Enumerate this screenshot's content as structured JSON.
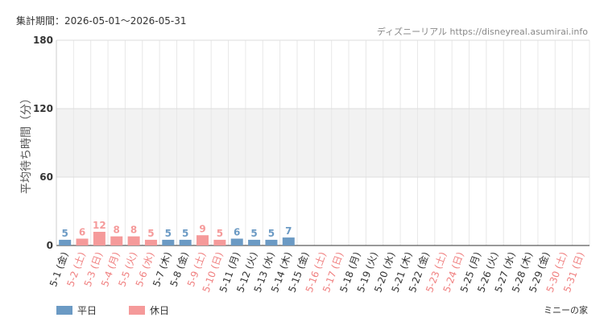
{
  "chart_data": {
    "type": "bar",
    "title": "集計期間：2026-05-01～2026-05-31",
    "source": "ディズニーリアル https://disneyreal.asumirai.info",
    "y_label": "平均待ち時間（分）",
    "footer": "ミニーの家",
    "categories": [
      "5-1 (金)",
      "5-2 (土)",
      "5-3 (日)",
      "5-4 (月)",
      "5-5 (火)",
      "5-6 (水)",
      "5-7 (木)",
      "5-8 (金)",
      "5-9 (土)",
      "5-10 (日)",
      "5-11 (月)",
      "5-12 (火)",
      "5-13 (水)",
      "5-14 (木)",
      "5-15 (金)",
      "5-16 (土)",
      "5-17 (日)",
      "5-18 (月)",
      "5-19 (火)",
      "5-20 (水)",
      "5-21 (木)",
      "5-22 (金)",
      "5-23 (土)",
      "5-24 (日)",
      "5-25 (月)",
      "5-26 (火)",
      "5-27 (水)",
      "5-28 (木)",
      "5-29 (金)",
      "5-30 (土)",
      "5-31 (日)"
    ],
    "category_colors": [
      "#333333",
      "#f08080",
      "#f08080",
      "#f08080",
      "#f08080",
      "#f08080",
      "#333333",
      "#333333",
      "#f08080",
      "#f08080",
      "#333333",
      "#333333",
      "#333333",
      "#333333",
      "#333333",
      "#f08080",
      "#f08080",
      "#333333",
      "#333333",
      "#333333",
      "#333333",
      "#333333",
      "#f08080",
      "#f08080",
      "#333333",
      "#333333",
      "#333333",
      "#333333",
      "#333333",
      "#f08080",
      "#f08080"
    ],
    "series": [
      {
        "name": "平日",
        "color": "#6b9ac4",
        "values": [
          5,
          null,
          null,
          null,
          null,
          null,
          5,
          5,
          null,
          null,
          6,
          5,
          5,
          7,
          null,
          null,
          null,
          null,
          null,
          null,
          null,
          null,
          null,
          null,
          null,
          null,
          null,
          null,
          null,
          null,
          null
        ]
      },
      {
        "name": "休日",
        "color": "#f59a9a",
        "values": [
          null,
          6,
          12,
          8,
          8,
          5,
          null,
          null,
          9,
          5,
          null,
          null,
          null,
          null,
          null,
          null,
          null,
          null,
          null,
          null,
          null,
          null,
          null,
          null,
          null,
          null,
          null,
          null,
          null,
          null,
          null
        ]
      }
    ],
    "ylim": [
      0,
      180
    ],
    "yticks": [
      0,
      60,
      120,
      180
    ],
    "grid": true
  }
}
